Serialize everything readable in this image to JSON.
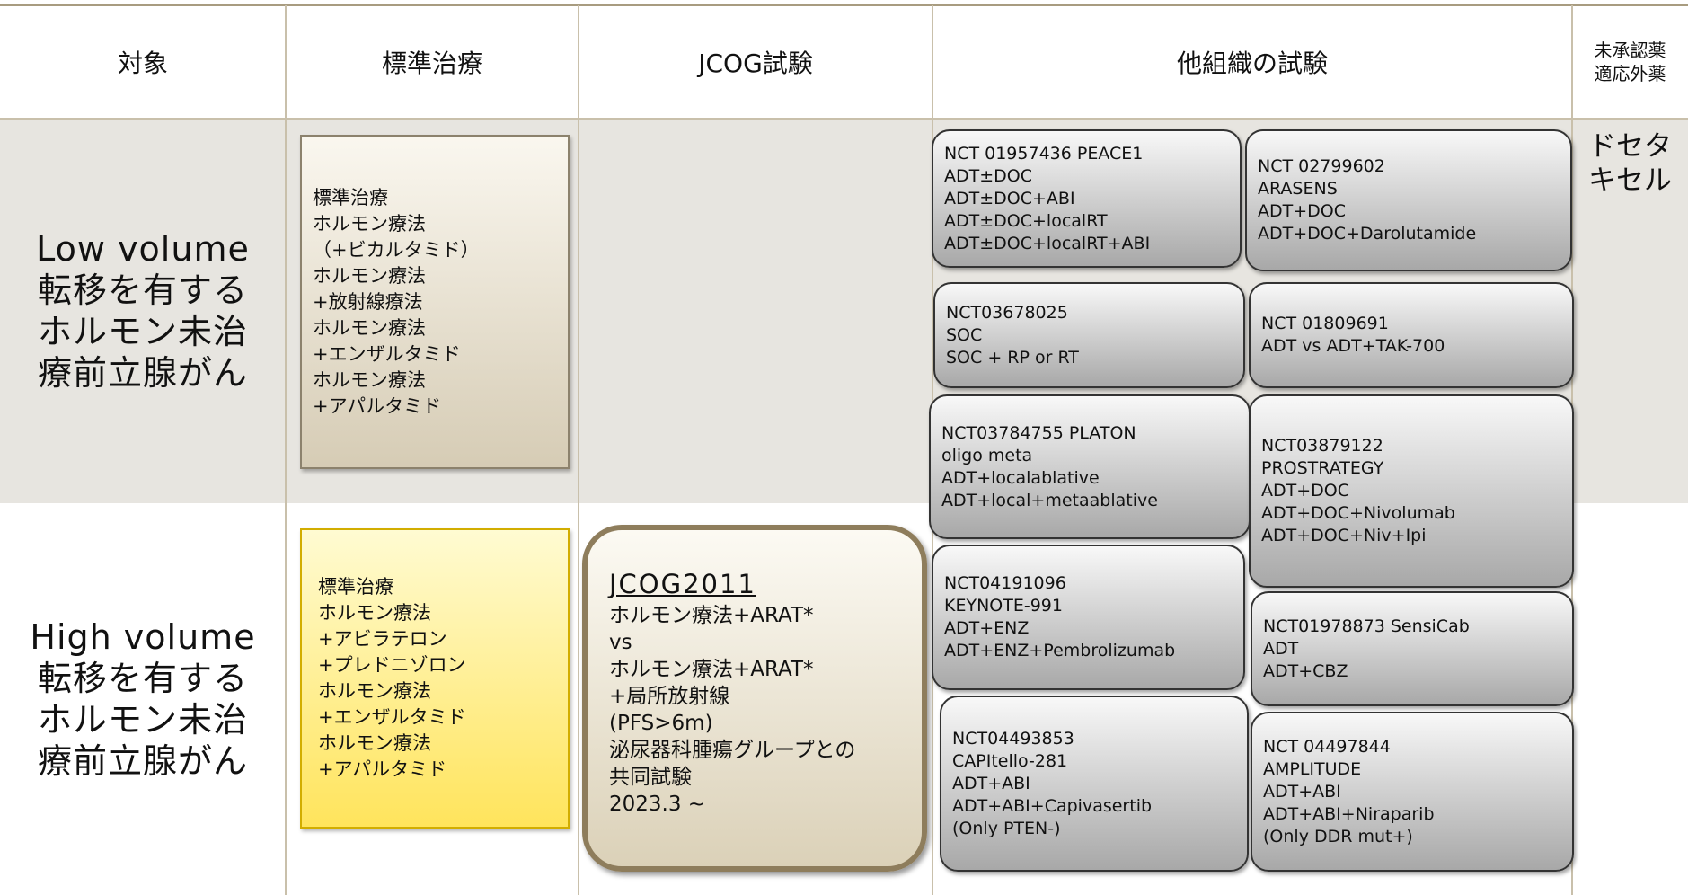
{
  "header": {
    "target": "対象",
    "standard": "標準治療",
    "jcog": "JCOG試験",
    "other": "他組織の試験",
    "unapproved": [
      "未承認薬",
      "適応外薬"
    ]
  },
  "rows": [
    {
      "target": [
        "Low volume",
        "転移を有する",
        "ホルモン未治",
        "療前立腺がん"
      ],
      "standard": [
        "標準治療",
        "ホルモン療法",
        "（+ビカルタミド）",
        "ホルモン療法",
        "+放射線療法",
        "ホルモン療法",
        "+エンザルタミド",
        "ホルモン療法",
        "+アパルタミド"
      ],
      "unapproved": [
        "ドセタ",
        "キセル"
      ]
    },
    {
      "target": [
        "High volume",
        "転移を有する",
        "ホルモン未治",
        "療前立腺がん"
      ],
      "standard": [
        "標準治療",
        "ホルモン療法",
        "+アビラテロン",
        "+プレドニゾロン",
        "ホルモン療法",
        "+エンザルタミド",
        "ホルモン療法",
        "+アパルタミド"
      ],
      "jcog": {
        "id": "JCOG2011",
        "lines": [
          "ホルモン療法+ARAT*",
          "vs",
          "ホルモン療法+ARAT*",
          "+局所放射線",
          "(PFS>6m)",
          "泌尿器科腫瘍グループとの",
          "共同試験",
          "2023.3 ~"
        ]
      }
    }
  ],
  "trials": [
    [
      "NCT 01957436 PEACE1",
      "ADT±DOC",
      "ADT±DOC+ABI",
      "ADT±DOC+localRT",
      "ADT±DOC+localRT+ABI"
    ],
    [
      "NCT 02799602",
      "ARASENS",
      "ADT+DOC",
      "ADT+DOC+Darolutamide"
    ],
    [
      "NCT03678025",
      "SOC",
      "SOC + RP or RT"
    ],
    [
      "NCT 01809691",
      "ADT vs ADT+TAK-700"
    ],
    [
      "NCT03784755 PLATON",
      "oligo meta",
      "ADT+localablative",
      "ADT+local+metaablative"
    ],
    [
      "NCT03879122",
      "PROSTRATEGY",
      "ADT+DOC",
      "ADT+DOC+Nivolumab",
      "ADT+DOC+Niv+Ipi"
    ],
    [
      "NCT04191096",
      "KEYNOTE-991",
      "ADT+ENZ",
      "ADT+ENZ+Pembrolizumab"
    ],
    [
      "NCT01978873 SensiCab",
      "ADT",
      "ADT+CBZ"
    ],
    [
      "NCT04493853",
      "CAPItello-281",
      "ADT+ABI",
      "ADT+ABI+Capivasertib",
      "(Only PTEN-)"
    ],
    [
      "NCT 04497844",
      "AMPLITUDE",
      "ADT+ABI",
      "ADT+ABI+Niraparib",
      "(Only DDR mut+)"
    ]
  ]
}
